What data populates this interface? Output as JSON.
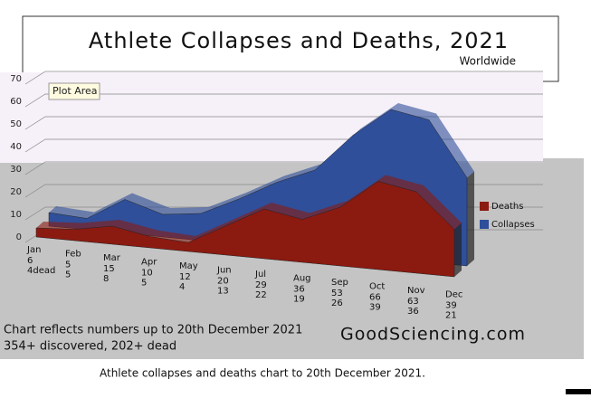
{
  "chart_data": {
    "type": "area",
    "title": "Athlete Collapses and Deaths, 2021",
    "subtitle": "Worldwide",
    "tooltip": "Plot Area",
    "notes": [
      "Chart reflects numbers up to 20th December 2021",
      "354+ discovered, 202+ dead"
    ],
    "source": "GoodSciencing.com",
    "caption": "Athlete collapses and deaths chart to 20th December 2021.",
    "categories": [
      "Jan",
      "Feb",
      "Mar",
      "Apr",
      "May",
      "Jun",
      "Jul",
      "Aug",
      "Sep",
      "Oct",
      "Nov",
      "Dec"
    ],
    "series": [
      {
        "name": "Deaths",
        "color": "#8b1a10",
        "values": [
          4,
          5,
          8,
          5,
          4,
          13,
          22,
          19,
          26,
          39,
          36,
          21
        ],
        "value_labels": [
          "4dead",
          "5",
          "8",
          "5",
          "4",
          "13",
          "22",
          "19",
          "26",
          "39",
          "36",
          "21"
        ]
      },
      {
        "name": "Collapses",
        "color": "#2f4f9a",
        "values": [
          6,
          5,
          15,
          10,
          12,
          20,
          29,
          36,
          53,
          66,
          63,
          39
        ]
      }
    ],
    "ylim": [
      0,
      70
    ],
    "yticks": [
      0,
      10,
      20,
      30,
      40,
      50,
      60,
      70
    ],
    "grid": true
  }
}
